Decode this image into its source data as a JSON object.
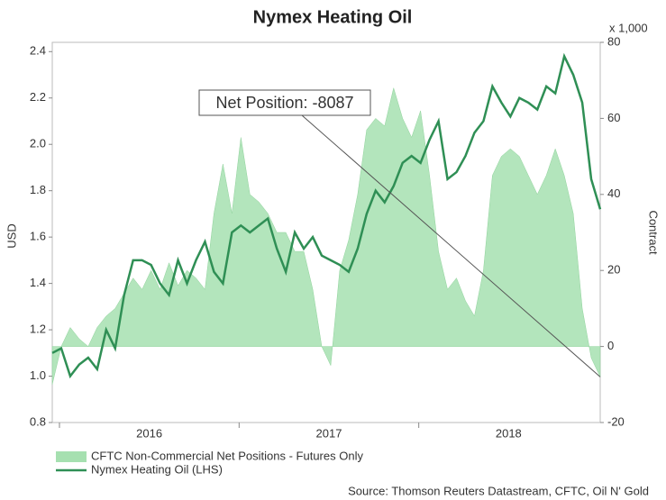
{
  "chart_data": {
    "type": "line",
    "title": "Nymex Heating Oil",
    "ylabel": "USD",
    "y2label": "Contract",
    "y2unit": "x 1,000",
    "annotation": "Net Position: -8087",
    "source": "Source: Thomson Reuters Datastream, CFTC, Oil N' Gold",
    "x": [
      2015.96,
      2016.01,
      2016.06,
      2016.11,
      2016.16,
      2016.21,
      2016.26,
      2016.31,
      2016.36,
      2016.41,
      2016.46,
      2016.51,
      2016.56,
      2016.61,
      2016.66,
      2016.71,
      2016.76,
      2016.81,
      2016.86,
      2016.91,
      2016.96,
      2017.01,
      2017.06,
      2017.11,
      2017.16,
      2017.21,
      2017.26,
      2017.31,
      2017.36,
      2017.41,
      2017.46,
      2017.51,
      2017.56,
      2017.61,
      2017.66,
      2017.71,
      2017.76,
      2017.81,
      2017.86,
      2017.91,
      2017.96,
      2018.01,
      2018.06,
      2018.11,
      2018.16,
      2018.21,
      2018.26,
      2018.31,
      2018.36,
      2018.41,
      2018.46,
      2018.51,
      2018.56,
      2018.61,
      2018.66,
      2018.71,
      2018.76,
      2018.81,
      2018.86,
      2018.91,
      2018.96,
      2019.01
    ],
    "xlim": [
      2015.96,
      2019.01
    ],
    "xticks": [
      {
        "value": 2016,
        "label": "2016"
      },
      {
        "value": 2017,
        "label": "2017"
      },
      {
        "value": 2018,
        "label": "2018"
      }
    ],
    "ylim": [
      0.8,
      2.44
    ],
    "yticks": [
      0.8,
      {
        "value": 1,
        "label": "1.0"
      },
      1.2,
      1.4,
      1.6,
      1.8,
      {
        "value": 2,
        "label": "2.0"
      },
      2.2,
      2.4
    ],
    "y2lim": [
      -20,
      80
    ],
    "y2ticks": [
      -20,
      0,
      20,
      40,
      60,
      80
    ],
    "series": [
      {
        "name": "CFTC Non-Commercial Net Positions - Futures Only",
        "type": "area",
        "axis": "y2",
        "color": "#a6e0b0",
        "values": [
          -10,
          0,
          5,
          2,
          0,
          5,
          8,
          10,
          14,
          18,
          15,
          20,
          15,
          22,
          16,
          20,
          18,
          15,
          35,
          48,
          35,
          55,
          40,
          38,
          35,
          30,
          30,
          25,
          25,
          15,
          0,
          -5,
          20,
          28,
          40,
          57,
          60,
          58,
          68,
          60,
          55,
          62,
          45,
          25,
          15,
          18,
          12,
          8,
          20,
          45,
          50,
          52,
          50,
          45,
          40,
          45,
          52,
          45,
          35,
          10,
          -3,
          -8
        ]
      },
      {
        "name": "Nymex Heating Oil (LHS)",
        "type": "line",
        "axis": "y",
        "color": "#2f8f55",
        "values": [
          1.1,
          1.12,
          1.0,
          1.05,
          1.08,
          1.03,
          1.2,
          1.12,
          1.35,
          1.5,
          1.5,
          1.48,
          1.4,
          1.35,
          1.5,
          1.4,
          1.5,
          1.58,
          1.45,
          1.4,
          1.62,
          1.65,
          1.62,
          1.65,
          1.68,
          1.55,
          1.45,
          1.62,
          1.55,
          1.6,
          1.52,
          1.5,
          1.48,
          1.45,
          1.55,
          1.7,
          1.8,
          1.75,
          1.82,
          1.92,
          1.95,
          1.92,
          2.02,
          2.1,
          1.85,
          1.88,
          1.95,
          2.05,
          2.1,
          2.25,
          2.18,
          2.12,
          2.2,
          2.18,
          2.15,
          2.25,
          2.22,
          2.38,
          2.3,
          2.18,
          1.85,
          1.72
        ]
      }
    ]
  }
}
